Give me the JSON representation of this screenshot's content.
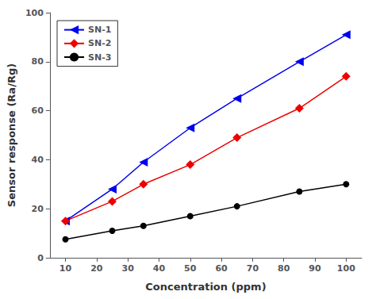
{
  "chart_data": {
    "type": "line",
    "x_label": "Concentration (ppm)",
    "y_label": "Sensor response (Ra/Rg)",
    "x": [
      10,
      25,
      35,
      50,
      65,
      85,
      100
    ],
    "series": [
      {
        "name": "SN-1",
        "color": "#0000EE",
        "marker": "triangle-left",
        "values": [
          15,
          28,
          39,
          53,
          65,
          80,
          91
        ]
      },
      {
        "name": "SN-2",
        "color": "#EE0000",
        "marker": "diamond",
        "values": [
          15,
          23,
          30,
          38,
          49,
          61,
          74
        ]
      },
      {
        "name": "SN-3",
        "color": "#000000",
        "marker": "circle",
        "values": [
          7.5,
          11,
          13,
          17,
          21,
          27,
          30
        ]
      }
    ],
    "xlim": [
      5,
      105
    ],
    "ylim": [
      0,
      100
    ],
    "xticks": [
      10,
      20,
      30,
      40,
      50,
      60,
      70,
      80,
      90,
      100
    ],
    "yticks": [
      0,
      20,
      40,
      60,
      80,
      100
    ],
    "grid": false,
    "legend": "upper left"
  }
}
